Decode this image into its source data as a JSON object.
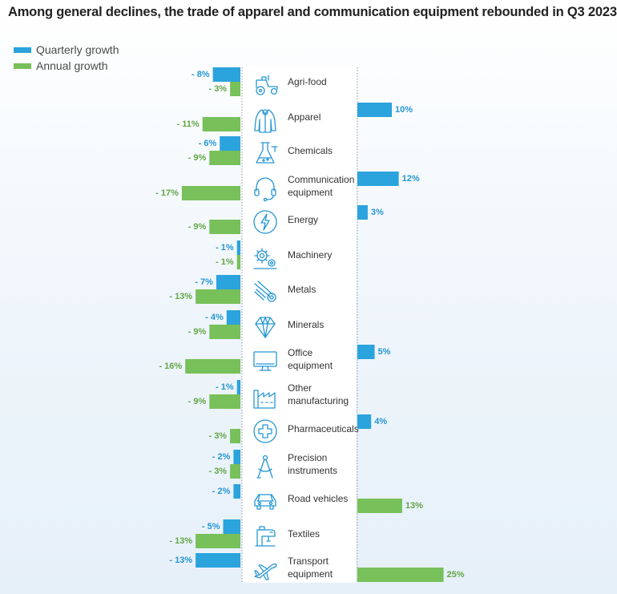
{
  "title": "Among general declines, the trade of apparel and communication equipment rebounded in Q3 2023",
  "colors": {
    "quarterly": "#2ba3dc",
    "annual": "#77c05a",
    "quarterly_label": "#2596d3",
    "annual_label": "#63a646"
  },
  "legend": [
    {
      "name": "Quarterly growth",
      "color": "#2ba3dc"
    },
    {
      "name": "Annual growth",
      "color": "#77c05a"
    }
  ],
  "chart_data": {
    "type": "bar",
    "orientation": "horizontal-diverging",
    "legend_position": "top-left",
    "grid": false,
    "series": [
      {
        "name": "Quarterly growth",
        "values": [
          -8,
          10,
          -6,
          12,
          3,
          -1,
          -7,
          -4,
          5,
          -1,
          4,
          -2,
          -2,
          -5,
          -13
        ]
      },
      {
        "name": "Annual growth",
        "values": [
          -3,
          -11,
          -9,
          -17,
          -9,
          -1,
          -13,
          -9,
          -16,
          -9,
          -3,
          -3,
          13,
          -13,
          25
        ]
      }
    ],
    "categories": [
      {
        "lines": [
          "Agri-food"
        ],
        "icon": "tractor-icon"
      },
      {
        "lines": [
          "Apparel"
        ],
        "icon": "jacket-icon"
      },
      {
        "lines": [
          "Chemicals"
        ],
        "icon": "flask-icon"
      },
      {
        "lines": [
          "Communication",
          "equipment"
        ],
        "icon": "headset-icon"
      },
      {
        "lines": [
          "Energy"
        ],
        "icon": "lightning-icon"
      },
      {
        "lines": [
          "Machinery"
        ],
        "icon": "gears-icon"
      },
      {
        "lines": [
          "Metals"
        ],
        "icon": "metal-pipes-icon"
      },
      {
        "lines": [
          "Minerals"
        ],
        "icon": "diamond-icon"
      },
      {
        "lines": [
          "Office",
          "equipment"
        ],
        "icon": "monitor-icon"
      },
      {
        "lines": [
          "Other",
          "manufacturing"
        ],
        "icon": "factory-icon"
      },
      {
        "lines": [
          "Pharmaceuticals"
        ],
        "icon": "medical-cross-icon"
      },
      {
        "lines": [
          "Precision",
          "instruments"
        ],
        "icon": "compass-icon"
      },
      {
        "lines": [
          "Road vehicles"
        ],
        "icon": "car-icon"
      },
      {
        "lines": [
          "Textiles"
        ],
        "icon": "sewing-machine-icon"
      },
      {
        "lines": [
          "Transport",
          "equipment"
        ],
        "icon": "airplane-icon"
      }
    ]
  }
}
